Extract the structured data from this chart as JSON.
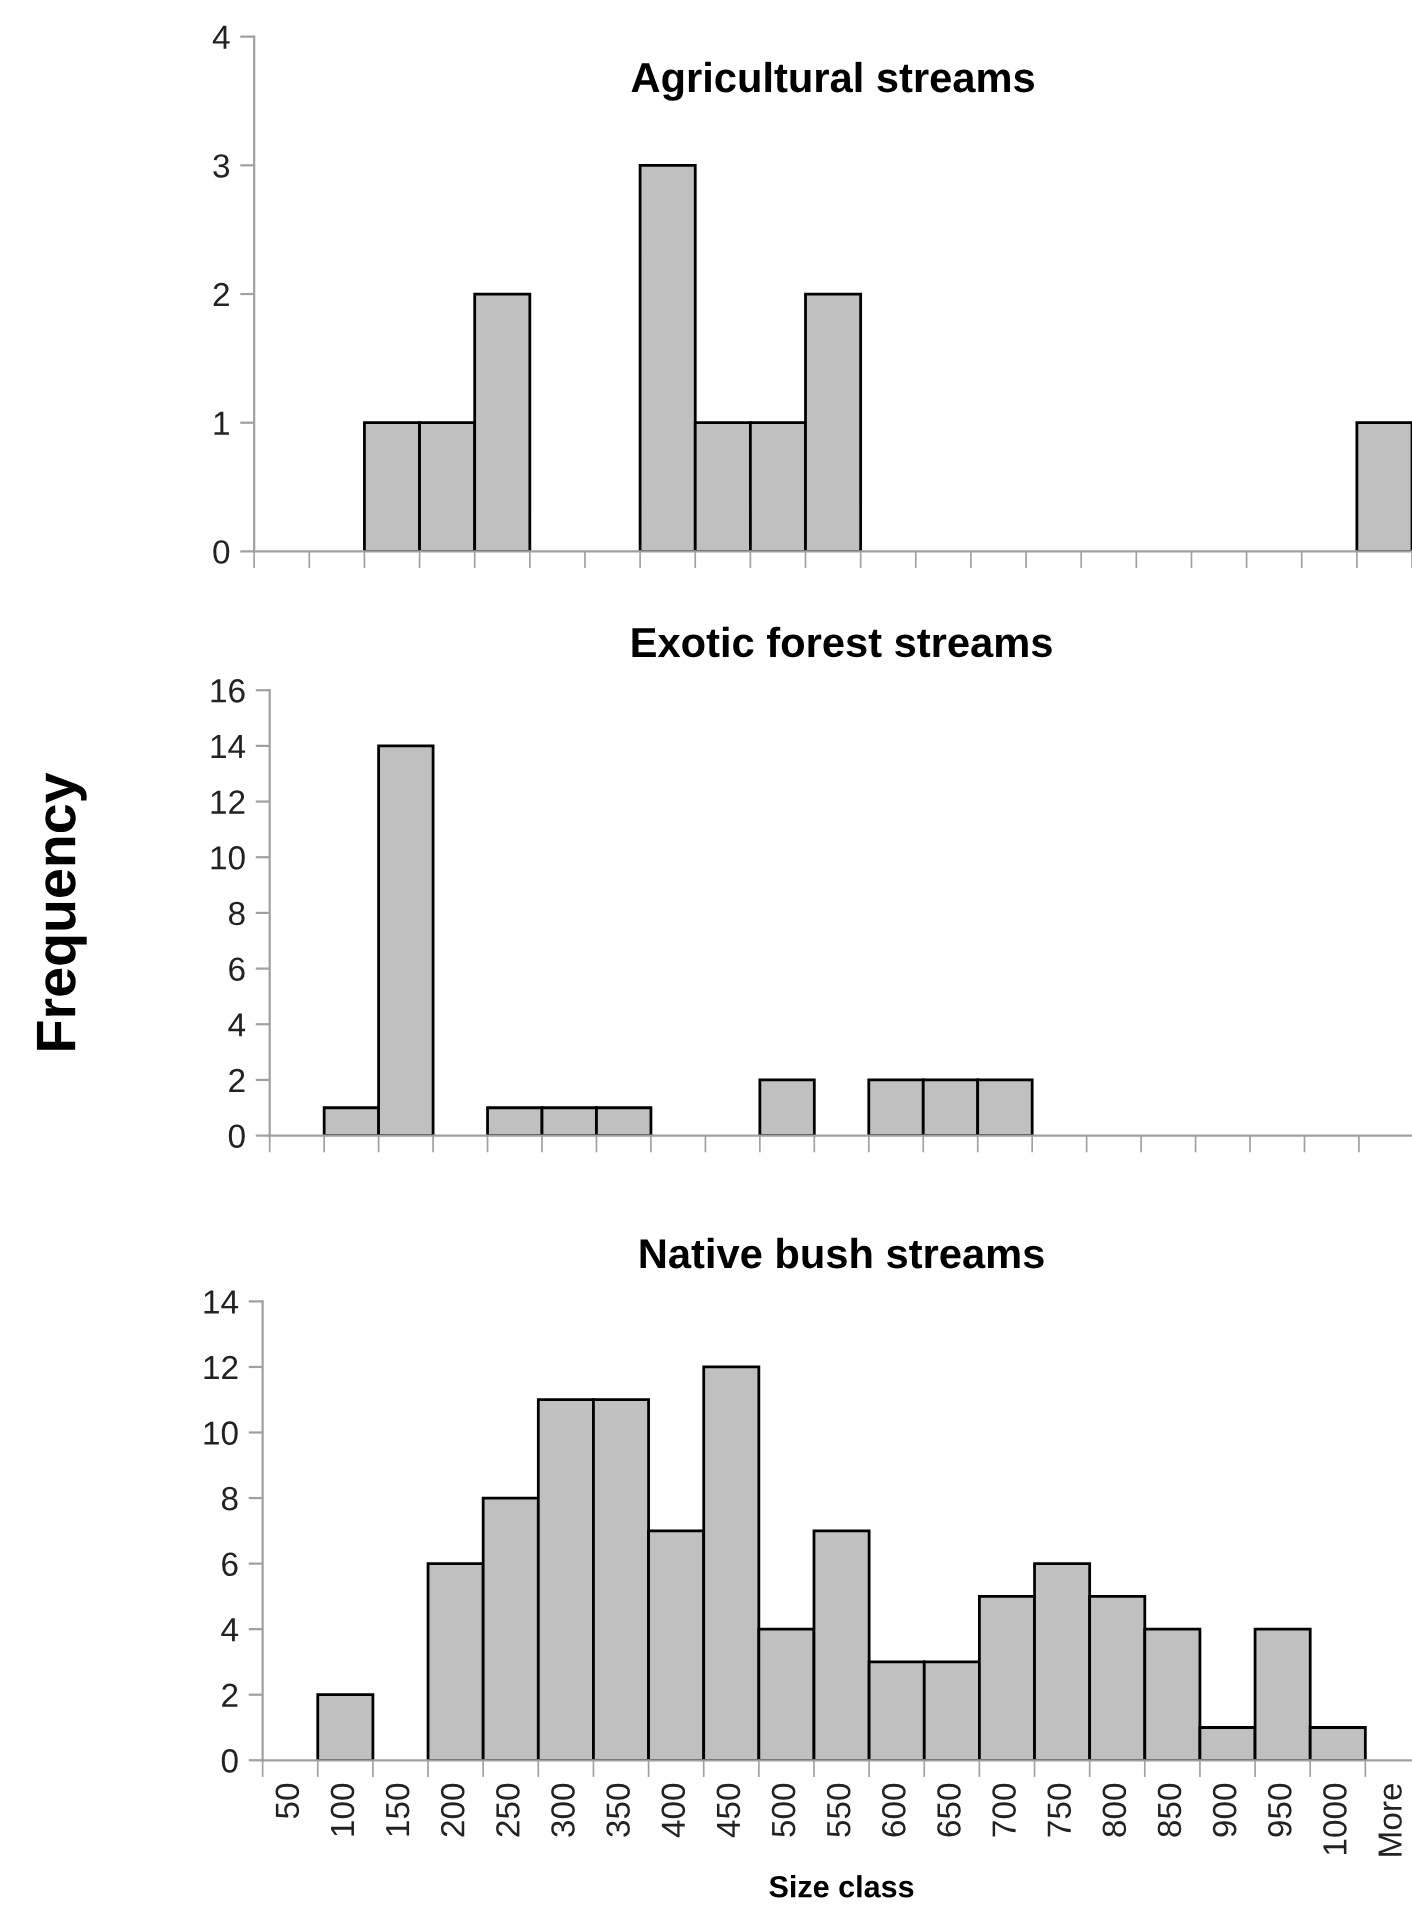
{
  "chart_data": [
    {
      "type": "bar",
      "title": "Agricultural streams",
      "categories": [
        null,
        null,
        null,
        null,
        null,
        null,
        null,
        null,
        null,
        null,
        null,
        null,
        null,
        null,
        null,
        null,
        null,
        null,
        null,
        null,
        null
      ],
      "values": [
        0,
        0,
        1,
        1,
        2,
        0,
        0,
        3,
        1,
        1,
        2,
        0,
        0,
        0,
        0,
        0,
        0,
        0,
        0,
        0,
        1
      ],
      "color": "#c0c0c0",
      "ylim": [
        0,
        4
      ],
      "yticks": [
        0,
        1,
        2,
        3,
        4
      ],
      "tick_labels": "y"
    },
    {
      "type": "bar",
      "title": "Exotic forest streams",
      "ylabel": "Frequency",
      "categories": [
        null,
        null,
        null,
        null,
        null,
        null,
        null,
        null,
        null,
        null,
        null,
        null,
        null,
        null,
        null,
        null,
        null,
        null,
        null,
        null,
        null
      ],
      "values": [
        0,
        1,
        14,
        0,
        1,
        1,
        1,
        0,
        0,
        2,
        0,
        2,
        2,
        2,
        0,
        0,
        0,
        0,
        0,
        0,
        0
      ],
      "color": "#c0c0c0",
      "ylim": [
        0,
        16
      ],
      "yticks": [
        0,
        2,
        4,
        6,
        8,
        10,
        12,
        14,
        16
      ],
      "tick_labels": "y"
    },
    {
      "type": "bar",
      "title": "Native bush streams",
      "xlabel": "Size class",
      "categories": [
        "50",
        "100",
        "150",
        "200",
        "250",
        "300",
        "350",
        "400",
        "450",
        "500",
        "550",
        "600",
        "650",
        "700",
        "750",
        "800",
        "850",
        "900",
        "950",
        "1000",
        "More"
      ],
      "values": [
        0,
        2,
        0,
        6,
        8,
        11,
        11,
        7,
        12,
        4,
        7,
        3,
        3,
        5,
        6,
        5,
        4,
        1,
        4,
        1,
        0
      ],
      "color": "#c0c0c0",
      "ylim": [
        0,
        14
      ],
      "yticks": [
        0,
        2,
        4,
        6,
        8,
        10,
        12,
        14
      ]
    }
  ]
}
